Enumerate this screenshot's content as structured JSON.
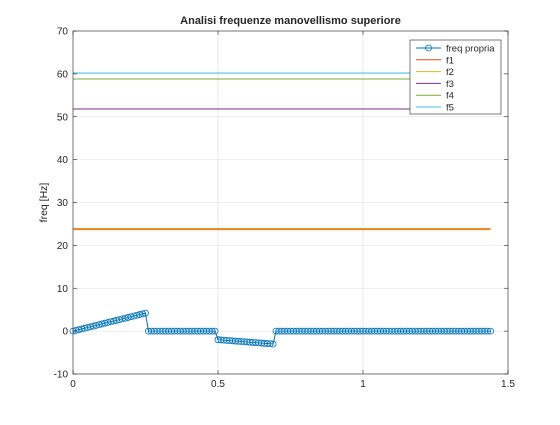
{
  "chart_data": {
    "type": "line",
    "title": "Analisi frequenze manovellismo superiore",
    "xlabel": "",
    "ylabel": "freq [Hz]",
    "xlim": [
      0,
      1.5
    ],
    "ylim": [
      -10,
      70
    ],
    "xticks": [
      0,
      0.5,
      1,
      1.5
    ],
    "xtick_labels": [
      "0",
      "0.5",
      "1",
      "1.5"
    ],
    "yticks": [
      -10,
      0,
      10,
      20,
      30,
      40,
      50,
      60,
      70
    ],
    "ytick_labels": [
      "-10",
      "0",
      "10",
      "20",
      "30",
      "40",
      "50",
      "60",
      "70"
    ],
    "grid": true,
    "legend_position": "top-right",
    "series": [
      {
        "name": "freq propria",
        "color": "#0072BD",
        "marker": "circle",
        "segments": [
          {
            "x_start": 0.0,
            "x_end": 0.25,
            "y_start": 0.0,
            "y_end": 4.2,
            "step": 0.01
          },
          {
            "x_start": 0.26,
            "x_end": 0.49,
            "y_start": 0.0,
            "y_end": 0.0,
            "step": 0.01
          },
          {
            "x_start": 0.5,
            "x_end": 0.69,
            "y_start": -2.0,
            "y_end": -3.0,
            "step": 0.01
          },
          {
            "x_start": 0.7,
            "x_end": 1.44,
            "y_start": 0.0,
            "y_end": 0.0,
            "step": 0.01
          }
        ]
      },
      {
        "name": "f1",
        "color": "#D95319",
        "y": 23.8,
        "x_start": 0.0,
        "x_end": 1.44
      },
      {
        "name": "f2",
        "color": "#EDB120",
        "y": 23.8,
        "x_start": 0.0,
        "x_end": 1.44
      },
      {
        "name": "f3",
        "color": "#7E2F8E",
        "y": 51.8,
        "x_start": 0.0,
        "x_end": 1.44
      },
      {
        "name": "f4",
        "color": "#77AC30",
        "y": 58.8,
        "x_start": 0.0,
        "x_end": 1.44
      },
      {
        "name": "f5",
        "color": "#4DBEEE",
        "y": 60.2,
        "x_start": 0.0,
        "x_end": 1.44
      }
    ]
  }
}
